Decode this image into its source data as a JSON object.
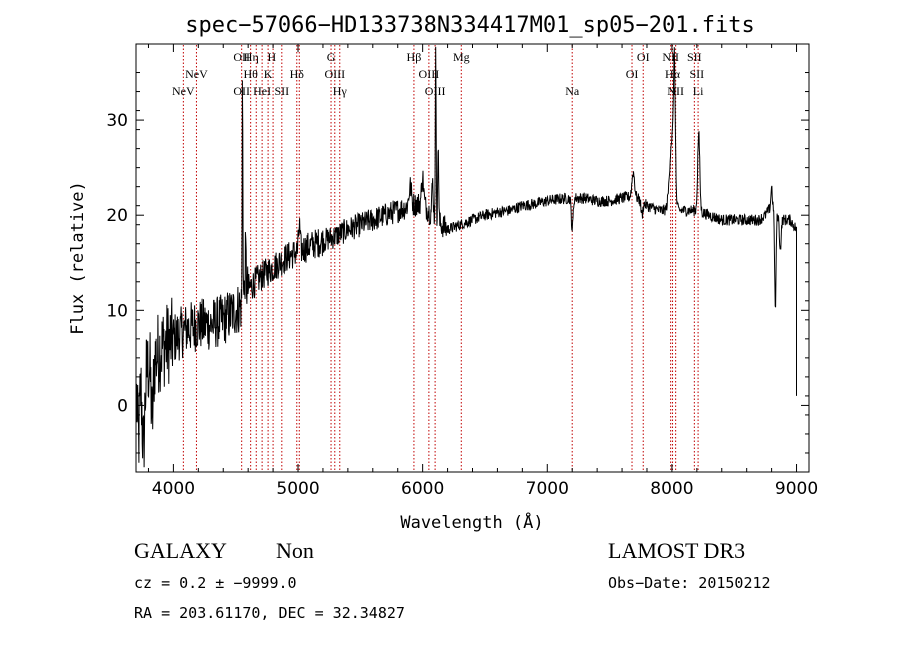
{
  "chart_data": {
    "type": "line",
    "title": "spec−57066−HD133738N334417M01_sp05−201.fits",
    "xlabel": "Wavelength (Å)",
    "ylabel": "Flux (relative)",
    "xlim": [
      3700,
      9100
    ],
    "ylim": [
      -7,
      38
    ],
    "xticks": [
      4000,
      5000,
      6000,
      7000,
      8000,
      9000
    ],
    "yticks": [
      0,
      10,
      20,
      30
    ],
    "spectrum_anchors": {
      "x": [
        3700,
        3800,
        3900,
        4000,
        4100,
        4200,
        4300,
        4400,
        4500,
        4550,
        4580,
        4700,
        4800,
        4900,
        5000,
        5100,
        5200,
        5300,
        5400,
        5500,
        5600,
        5700,
        5800,
        5900,
        6000,
        6100,
        6200,
        6300,
        6400,
        6500,
        6600,
        6700,
        6800,
        6900,
        7000,
        7100,
        7200,
        7300,
        7400,
        7500,
        7600,
        7700,
        7800,
        7900,
        8000,
        8100,
        8200,
        8300,
        8400,
        8500,
        8600,
        8700,
        8750,
        8800,
        8850,
        8900,
        8950,
        9000
      ],
      "y": [
        2,
        4,
        6,
        7,
        8,
        8.5,
        8.5,
        9,
        10,
        10.5,
        12,
        13.5,
        14.5,
        15.5,
        16.2,
        16.8,
        17.3,
        17.8,
        18.5,
        19,
        19.5,
        20,
        20.5,
        21,
        21.3,
        19.5,
        18.5,
        19,
        19.5,
        20,
        20.3,
        20.5,
        21,
        21.2,
        21.5,
        21.7,
        21.8,
        21.8,
        21.5,
        21.5,
        21.8,
        22,
        21,
        20.5,
        20.5,
        20.5,
        20.5,
        20,
        19.5,
        19.5,
        19.5,
        19.5,
        20,
        21,
        20,
        19.5,
        19.5,
        18.5
      ]
    },
    "spectrum_features": [
      {
        "x": 3720,
        "y": -3.5,
        "w": 12
      },
      {
        "x": 3760,
        "y": -4.5,
        "w": 14
      },
      {
        "x": 3830,
        "y": -1.5,
        "w": 12
      },
      {
        "x": 4555,
        "y": 35,
        "w": 4
      },
      {
        "x": 4580,
        "y": 16,
        "w": 6
      },
      {
        "x": 5010,
        "y": 19,
        "w": 8
      },
      {
        "x": 5900,
        "y": 23,
        "w": 15
      },
      {
        "x": 6000,
        "y": 24,
        "w": 12
      },
      {
        "x": 6080,
        "y": 23.5,
        "w": 8
      },
      {
        "x": 6105,
        "y": 37,
        "w": 5
      },
      {
        "x": 6125,
        "y": 28,
        "w": 5
      },
      {
        "x": 7200,
        "y": 18.5,
        "w": 10
      },
      {
        "x": 7690,
        "y": 24.5,
        "w": 15
      },
      {
        "x": 7760,
        "y": 20,
        "w": 10
      },
      {
        "x": 8000,
        "y": 28,
        "w": 25
      },
      {
        "x": 8020,
        "y": 33,
        "w": 10
      },
      {
        "x": 8215,
        "y": 28.5,
        "w": 12
      },
      {
        "x": 8800,
        "y": 23,
        "w": 8
      },
      {
        "x": 8830,
        "y": 10,
        "w": 8
      },
      {
        "x": 8870,
        "y": 16.5,
        "w": 10
      }
    ],
    "lines": [
      {
        "name": "NeV",
        "x": 4080,
        "row": 3
      },
      {
        "name": "NeV",
        "x": 4185,
        "row": 2
      },
      {
        "name": "OII",
        "x": 4548,
        "row": 1
      },
      {
        "name": "OII",
        "x": 4548,
        "row": 3
      },
      {
        "name": "Hη",
        "x": 4625,
        "row": 1
      },
      {
        "name": "Hθ",
        "x": 4620,
        "row": 2
      },
      {
        "name": "HeI",
        "x": 4712,
        "row": 3
      },
      {
        "name": "H",
        "x": 4790,
        "row": 1
      },
      {
        "name": "K",
        "x": 4760,
        "row": 2
      },
      {
        "name": "SII",
        "x": 4870,
        "row": 3
      },
      {
        "name": "Hδ",
        "x": 4990,
        "row": 2
      },
      {
        "name": "G",
        "x": 5265,
        "row": 1
      },
      {
        "name": "OIII",
        "x": 5295,
        "row": 2
      },
      {
        "name": "Hγ",
        "x": 5335,
        "row": 3
      },
      {
        "name": "Hβ",
        "x": 5930,
        "row": 1
      },
      {
        "name": "OIII",
        "x": 6050,
        "row": 2
      },
      {
        "name": "OIII",
        "x": 6100,
        "row": 3
      },
      {
        "name": "Mg",
        "x": 6310,
        "row": 1
      },
      {
        "name": "Na",
        "x": 7200,
        "row": 3
      },
      {
        "name": "OI",
        "x": 7680,
        "row": 2
      },
      {
        "name": "OI",
        "x": 7770,
        "row": 1
      },
      {
        "name": "NII",
        "x": 7990,
        "row": 1
      },
      {
        "name": "Hα",
        "x": 8005,
        "row": 2
      },
      {
        "name": "NII",
        "x": 8030,
        "row": 3
      },
      {
        "name": "SII",
        "x": 8180,
        "row": 1
      },
      {
        "name": "SII",
        "x": 8200,
        "row": 2
      },
      {
        "name": "Li",
        "x": 8210,
        "row": 3
      }
    ],
    "line_markers": [
      4080,
      4185,
      4548,
      4620,
      4665,
      4712,
      4760,
      4800,
      4870,
      4990,
      5010,
      5265,
      5295,
      5335,
      5930,
      6050,
      6100,
      6310,
      7200,
      7680,
      7770,
      7990,
      8005,
      8030,
      8180,
      8210
    ]
  },
  "info": {
    "class_label": "GALAXY",
    "subclass_label": "Non",
    "survey_label": "LAMOST DR3",
    "cz_text": "cz = 0.2 ± −9999.0",
    "obs_date_text": "Obs−Date: 20150212",
    "radec_text": "RA = 203.61170, DEC =  32.34827"
  },
  "colors": {
    "line_marker": "#c00000",
    "spectrum": "#000000"
  }
}
